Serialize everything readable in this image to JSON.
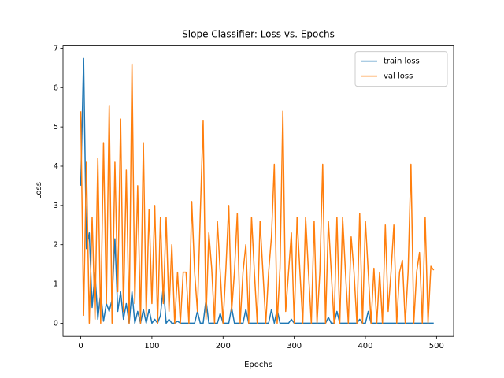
{
  "chart_data": {
    "type": "line",
    "title": "Slope Classifier: Loss vs. Epochs",
    "x_label": "Epochs",
    "y_label": "Loss",
    "x": [
      0,
      4,
      8,
      12,
      16,
      20,
      24,
      28,
      32,
      36,
      40,
      44,
      48,
      52,
      56,
      60,
      64,
      68,
      72,
      76,
      80,
      84,
      88,
      92,
      96,
      100,
      104,
      108,
      112,
      116,
      120,
      124,
      128,
      132,
      136,
      140,
      144,
      148,
      152,
      156,
      160,
      164,
      168,
      172,
      176,
      180,
      184,
      188,
      192,
      196,
      200,
      204,
      208,
      212,
      216,
      220,
      224,
      228,
      232,
      236,
      240,
      244,
      248,
      252,
      256,
      260,
      264,
      268,
      272,
      276,
      280,
      284,
      288,
      292,
      296,
      300,
      304,
      308,
      312,
      316,
      320,
      324,
      328,
      332,
      336,
      340,
      344,
      348,
      352,
      356,
      360,
      364,
      368,
      372,
      376,
      380,
      384,
      388,
      392,
      396,
      400,
      404,
      408,
      412,
      416,
      420,
      424,
      428,
      432,
      436,
      440,
      444,
      448,
      452,
      456,
      460,
      464,
      468,
      472,
      476,
      480,
      484,
      488,
      492,
      496
    ],
    "series": [
      {
        "name": "train loss",
        "color": "#1f77b4",
        "values": [
          3.5,
          6.74,
          1.9,
          2.3,
          0.4,
          1.3,
          0.1,
          0.8,
          0.05,
          0.5,
          0.3,
          0.6,
          2.15,
          0.3,
          0.8,
          0.1,
          0.5,
          0,
          0.8,
          0,
          0.3,
          0,
          0.35,
          0,
          0.35,
          0,
          0.1,
          0,
          0.2,
          0.95,
          0,
          0.1,
          0,
          0,
          0.05,
          0,
          0,
          0,
          0,
          0,
          0,
          0.3,
          0,
          0,
          0.6,
          0,
          0,
          0,
          0,
          0.25,
          0,
          0,
          0,
          0.4,
          0,
          0,
          0,
          0,
          0.35,
          0,
          0,
          0,
          0,
          0,
          0,
          0,
          0,
          0.35,
          0,
          0.35,
          0,
          0,
          0,
          0,
          0.1,
          0,
          0,
          0,
          0,
          0,
          0,
          0,
          0,
          0,
          0,
          0,
          0,
          0.15,
          0,
          0,
          0.3,
          0,
          0,
          0,
          0,
          0,
          0,
          0,
          0.1,
          0,
          0,
          0.3,
          0,
          0,
          0,
          0,
          0,
          0,
          0,
          0,
          0,
          0,
          0,
          0,
          0,
          0,
          0,
          0,
          0,
          0,
          0,
          0,
          0,
          0,
          0
        ]
      },
      {
        "name": "val loss",
        "color": "#ff7f0e",
        "values": [
          5.4,
          0.2,
          4.1,
          0,
          2.7,
          0.1,
          4.2,
          0,
          4.6,
          0.5,
          5.55,
          0,
          4.1,
          0.8,
          5.2,
          0.3,
          3.9,
          0,
          6.6,
          0.5,
          3.5,
          0,
          4.6,
          0.2,
          2.9,
          0.5,
          3.0,
          0,
          2.7,
          0.5,
          2.7,
          0.3,
          2.0,
          0,
          1.3,
          0,
          1.3,
          1.3,
          0,
          3.1,
          1.3,
          0.3,
          2.8,
          5.15,
          0.1,
          2.3,
          1.4,
          0,
          2.6,
          1.3,
          0,
          1.4,
          3.0,
          0.3,
          1.3,
          2.8,
          0,
          1.3,
          2.0,
          0,
          2.7,
          1.3,
          0,
          2.6,
          1.3,
          0,
          1.3,
          2.2,
          4.05,
          0,
          1.4,
          5.4,
          0.3,
          1.3,
          2.3,
          0,
          2.7,
          1.3,
          0,
          2.7,
          1.3,
          0,
          2.6,
          0,
          1.3,
          4.05,
          0,
          2.6,
          1.3,
          0,
          2.7,
          0,
          2.7,
          1.3,
          0,
          2.2,
          1.3,
          0,
          2.8,
          0,
          2.6,
          1.3,
          0,
          1.4,
          0,
          1.3,
          0,
          2.5,
          0.3,
          1.3,
          2.5,
          0,
          1.3,
          1.6,
          0,
          1.3,
          4.05,
          0,
          1.3,
          1.8,
          0,
          2.7,
          0,
          1.45,
          1.35
        ]
      }
    ],
    "xlim": [
      -24.95,
      523.95
    ],
    "xticks": [
      0,
      100,
      200,
      300,
      400,
      500
    ],
    "ylim": [
      -0.337,
      7.077
    ],
    "yticks": [
      0,
      1,
      2,
      3,
      4,
      5,
      6,
      7
    ],
    "legend": "upper right"
  }
}
